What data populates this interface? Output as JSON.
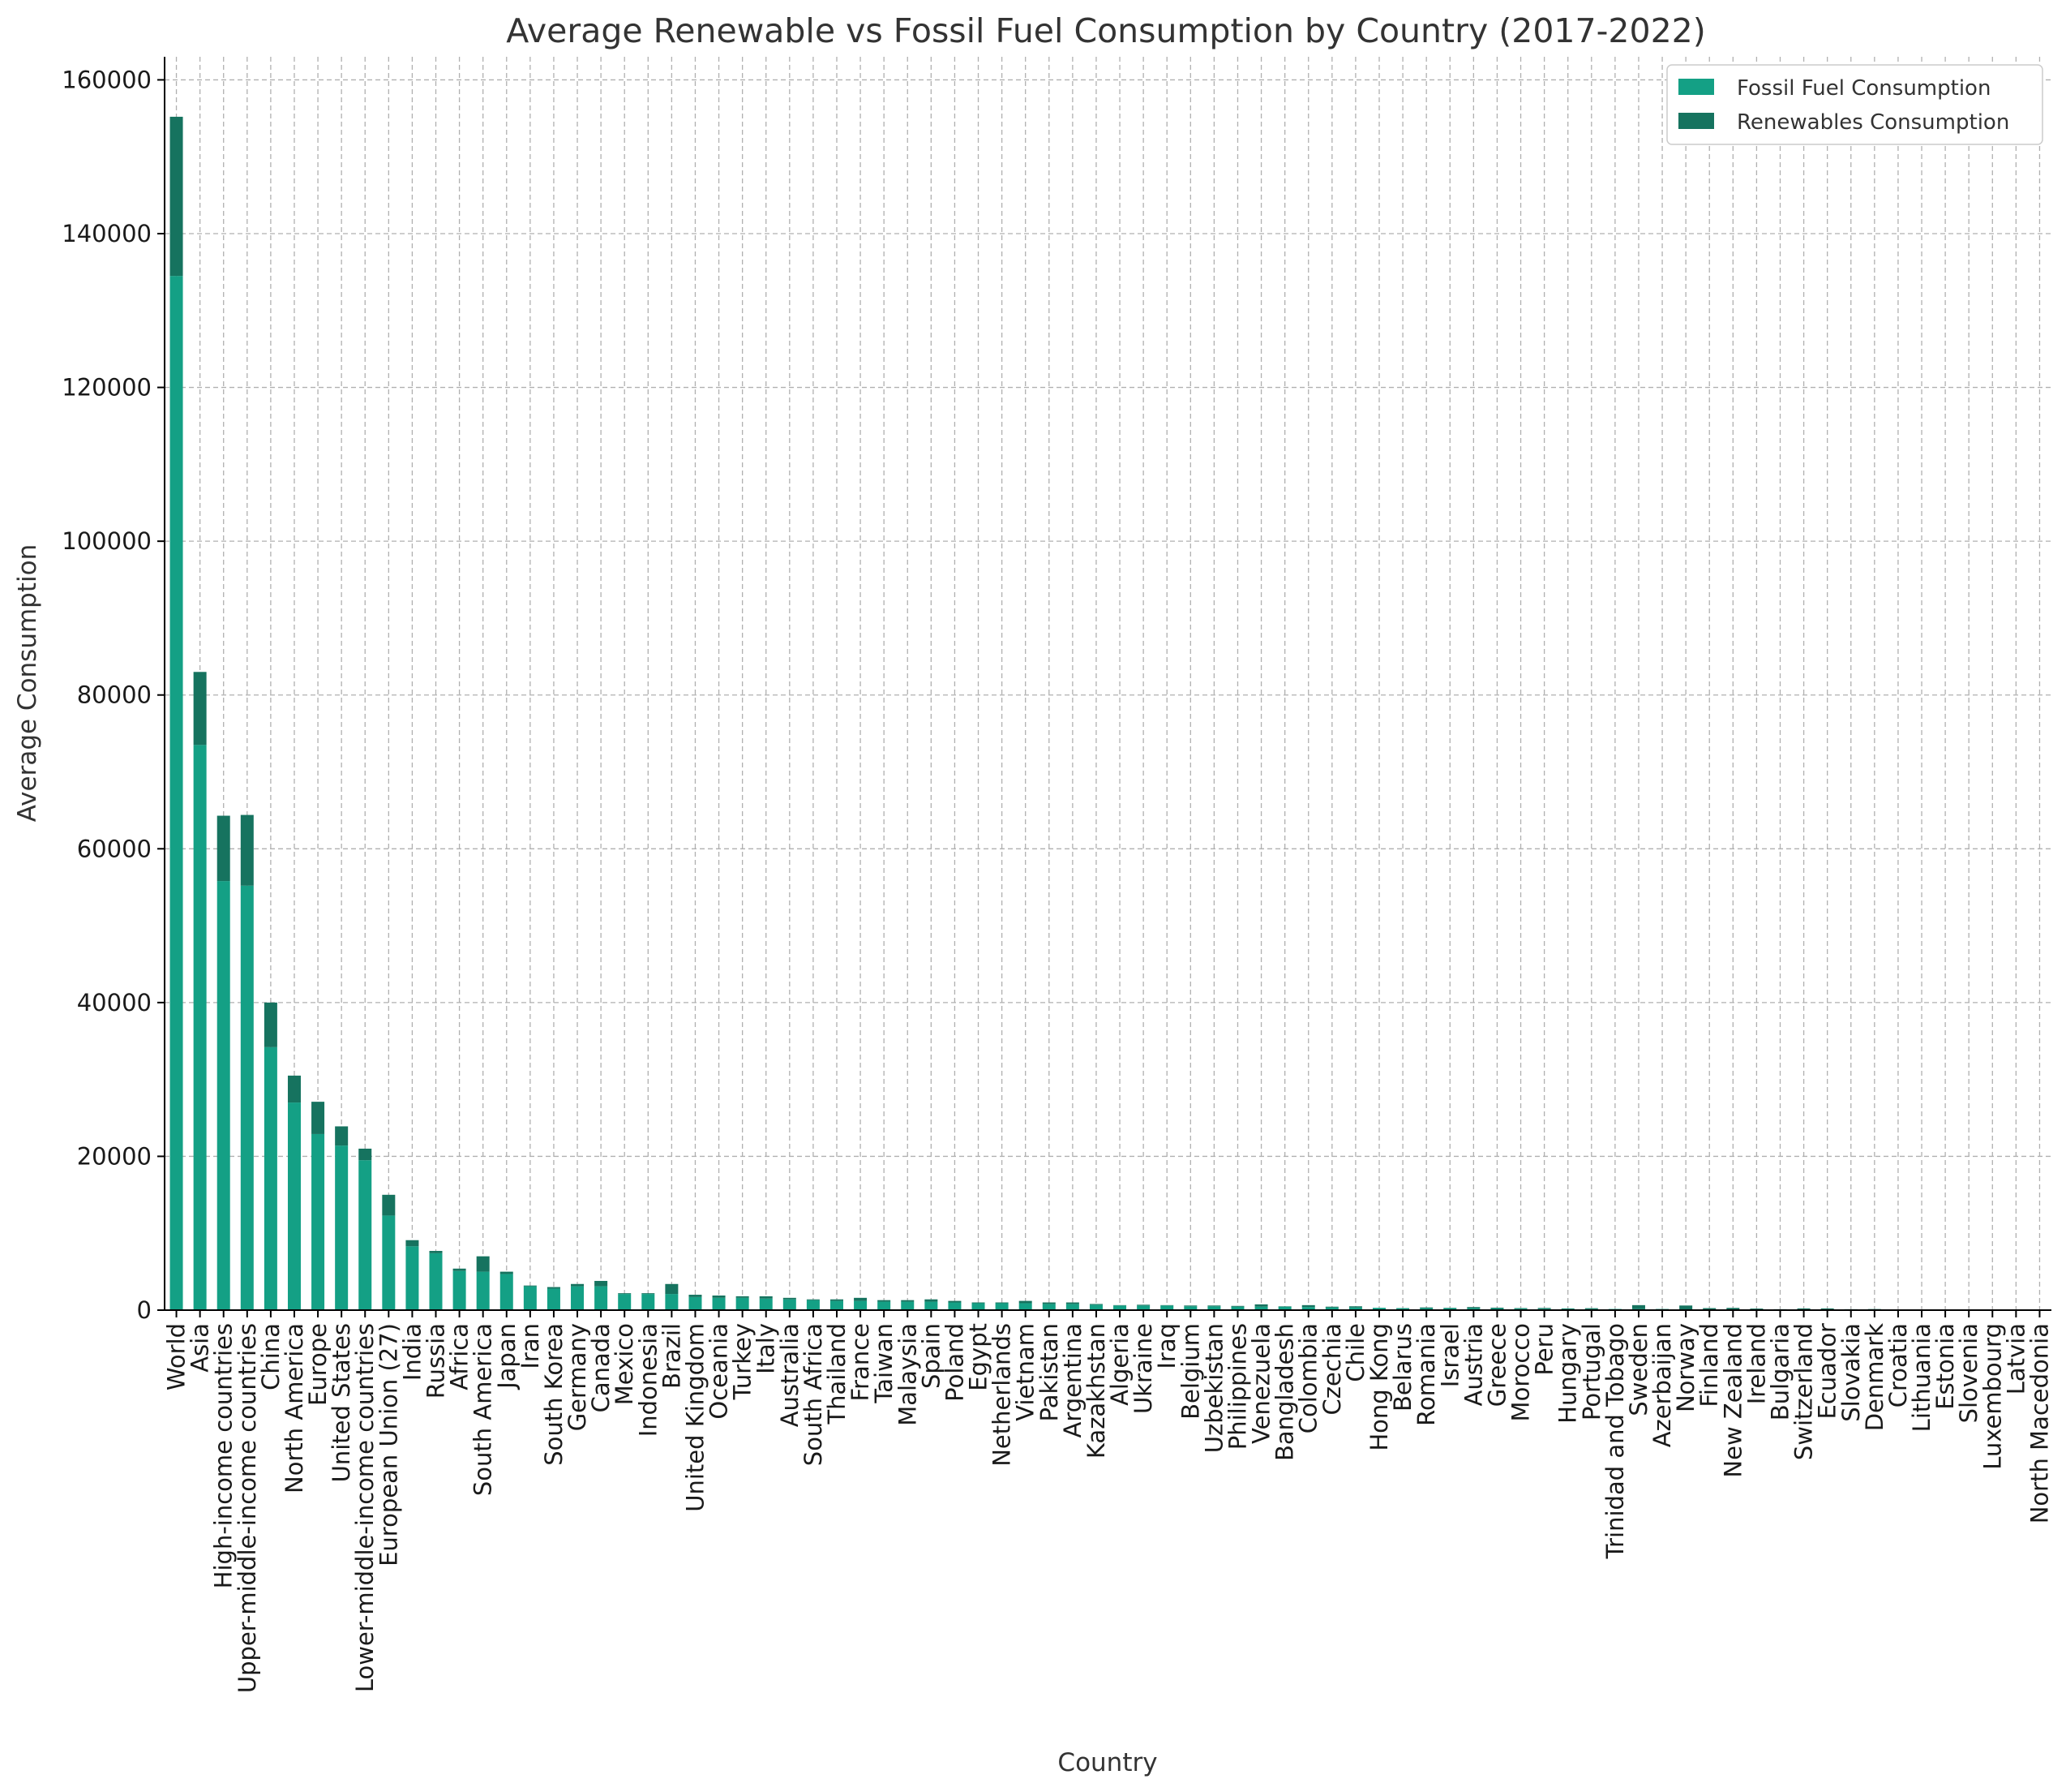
{
  "chart_data": {
    "type": "bar",
    "stacked": true,
    "title": "Average Renewable vs Fossil Fuel Consumption by Country (2017-2022)",
    "xlabel": "Country",
    "ylabel": "Average Consumption",
    "ylim": [
      0,
      163000
    ],
    "yticks": [
      0,
      20000,
      40000,
      60000,
      80000,
      100000,
      120000,
      140000,
      160000
    ],
    "grid": true,
    "legend_position": "top-right",
    "colors": {
      "fossil": "#14a085",
      "renewables": "#16735f"
    },
    "categories": [
      "World",
      "Asia",
      "High-income countries",
      "Upper-middle-income countries",
      "China",
      "North America",
      "Europe",
      "United States",
      "Lower-middle-income countries",
      "European Union (27)",
      "India",
      "Russia",
      "Africa",
      "South America",
      "Japan",
      "Iran",
      "South Korea",
      "Germany",
      "Canada",
      "Mexico",
      "Indonesia",
      "Brazil",
      "United Kingdom",
      "Oceania",
      "Turkey",
      "Italy",
      "Australia",
      "South Africa",
      "Thailand",
      "France",
      "Taiwan",
      "Malaysia",
      "Spain",
      "Poland",
      "Egypt",
      "Netherlands",
      "Vietnam",
      "Pakistan",
      "Argentina",
      "Kazakhstan",
      "Algeria",
      "Ukraine",
      "Iraq",
      "Belgium",
      "Uzbekistan",
      "Philippines",
      "Venezuela",
      "Bangladesh",
      "Colombia",
      "Czechia",
      "Chile",
      "Hong Kong",
      "Belarus",
      "Romania",
      "Israel",
      "Austria",
      "Greece",
      "Morocco",
      "Peru",
      "Hungary",
      "Portugal",
      "Trinidad and Tobago",
      "Sweden",
      "Azerbaijan",
      "Norway",
      "Finland",
      "New Zealand",
      "Ireland",
      "Bulgaria",
      "Switzerland",
      "Ecuador",
      "Slovakia",
      "Denmark",
      "Croatia",
      "Lithuania",
      "Estonia",
      "Slovenia",
      "Luxembourg",
      "Latvia",
      "North Macedonia"
    ],
    "series": [
      {
        "name": "Fossil Fuel Consumption",
        "values": [
          134500,
          73500,
          55800,
          55200,
          34200,
          27000,
          22900,
          21400,
          19500,
          12300,
          8300,
          7400,
          5100,
          5000,
          4700,
          3100,
          2800,
          3100,
          3100,
          2100,
          2100,
          2100,
          1700,
          1600,
          1600,
          1500,
          1400,
          1300,
          1200,
          1200,
          1100,
          1100,
          1100,
          1000,
          900,
          900,
          900,
          800,
          800,
          700,
          600,
          600,
          600,
          500,
          500,
          450,
          450,
          450,
          400,
          350,
          350,
          300,
          250,
          250,
          250,
          250,
          220,
          200,
          180,
          160,
          150,
          150,
          150,
          140,
          100,
          110,
          90,
          100,
          80,
          70,
          90,
          70,
          60,
          50,
          40,
          40,
          40,
          30,
          30,
          30
        ]
      },
      {
        "name": "Renewables Consumption",
        "values": [
          20700,
          9500,
          8500,
          9200,
          5800,
          3500,
          4200,
          2500,
          1500,
          2700,
          800,
          300,
          300,
          2000,
          300,
          100,
          200,
          300,
          700,
          100,
          100,
          1300,
          300,
          300,
          200,
          300,
          200,
          100,
          200,
          400,
          200,
          200,
          300,
          200,
          100,
          100,
          300,
          200,
          200,
          100,
          50,
          100,
          50,
          100,
          100,
          100,
          300,
          50,
          250,
          100,
          150,
          0,
          20,
          100,
          50,
          150,
          100,
          60,
          100,
          60,
          100,
          0,
          500,
          20,
          500,
          150,
          200,
          100,
          40,
          150,
          130,
          50,
          80,
          50,
          20,
          20,
          40,
          20,
          50,
          20
        ]
      }
    ]
  }
}
